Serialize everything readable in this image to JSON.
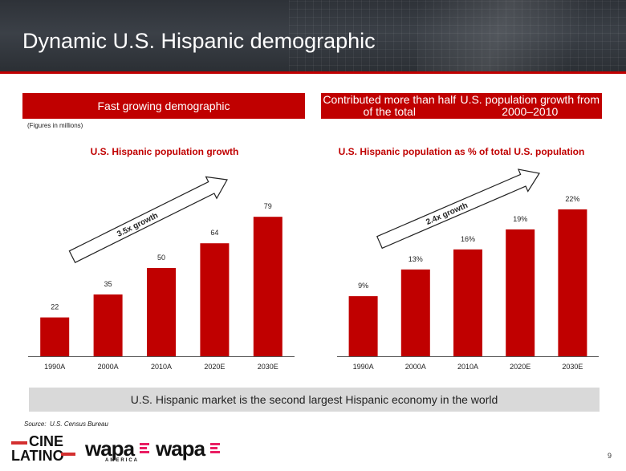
{
  "header": {
    "title": "Dynamic U.S. Hispanic demographic"
  },
  "left_panel": {
    "banner": "Fast growing demographic",
    "note": "(Figures in millions)"
  },
  "right_panel": {
    "banner_line1": "Contributed more than half of the total",
    "banner_line2": "U.S. population growth from 2000–2010"
  },
  "footer": {
    "banner": "U.S. Hispanic market is the second largest Hispanic economy in the world",
    "source_label": "Source:",
    "source_text": "U.S. Census Bureau",
    "page_number": "9"
  },
  "logos": {
    "cine_line1": "CINE",
    "cine_line2": "LATINO",
    "wapa_america": "wapa",
    "wapa_america_sub": "AMERICA",
    "wapa": "wapa"
  },
  "colors": {
    "accent": "#c00000",
    "gray_banner": "#d9d9d9",
    "header_bg": "#34383e"
  },
  "chart_data": [
    {
      "type": "bar",
      "title": "U.S. Hispanic population growth",
      "categories": [
        "1990A",
        "2000A",
        "2010A",
        "2020E",
        "2030E"
      ],
      "values": [
        22,
        35,
        50,
        64,
        79
      ],
      "value_labels": [
        "22",
        "35",
        "50",
        "64",
        "79"
      ],
      "ylim": [
        0,
        100
      ],
      "grid": false,
      "annotation": "3.5x growth"
    },
    {
      "type": "bar",
      "title": "U.S. Hispanic population as % of total U.S. population",
      "categories": [
        "1990A",
        "2000A",
        "2010A",
        "2020E",
        "2030E"
      ],
      "values": [
        9,
        13,
        16,
        19,
        22
      ],
      "value_labels": [
        "9%",
        "13%",
        "16%",
        "19%",
        "22%"
      ],
      "ylim": [
        0,
        28
      ],
      "grid": false,
      "annotation": "2.4x growth"
    }
  ]
}
